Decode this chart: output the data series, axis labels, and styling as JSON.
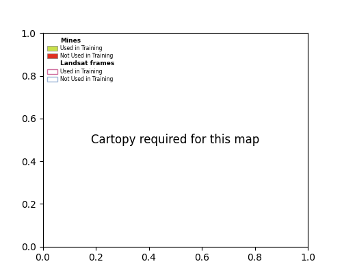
{
  "title": "",
  "legend_mines_title": "Mines",
  "legend_frames_title": "Landsat frames",
  "mine_train_color": "#c8e04a",
  "mine_test_color": "#e03020",
  "frame_train_color": "#d070a0",
  "frame_test_color": "#a0b8d8",
  "canada_land_color": "#b0b0b0",
  "canada_water_color": "#ffffff",
  "background_color": "#ffffff",
  "ocean_color": "#dce8f0",
  "legend_mine_train_label": "Used in Training",
  "legend_mine_test_label": "Not Used in Training",
  "legend_frame_train_label": "Used in Training",
  "legend_frame_test_label": "Not Used in Training",
  "figsize": [
    5.0,
    4.04
  ],
  "dpi": 100
}
